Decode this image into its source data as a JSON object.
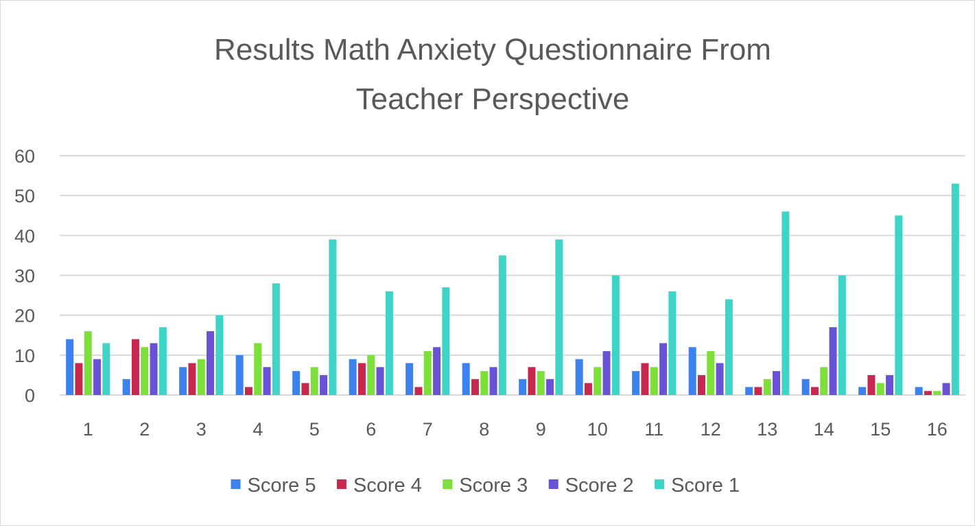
{
  "chart_data": {
    "type": "bar",
    "title": [
      "Results Math Anxiety Questionnaire From",
      "Teacher Perspective"
    ],
    "xlabel": "",
    "ylabel": "",
    "categories": [
      "1",
      "2",
      "3",
      "4",
      "5",
      "6",
      "7",
      "8",
      "9",
      "10",
      "11",
      "12",
      "13",
      "14",
      "15",
      "16"
    ],
    "ylim": [
      0,
      60
    ],
    "yticks": [
      0,
      10,
      20,
      30,
      40,
      50,
      60
    ],
    "grid": true,
    "legend_position": "bottom",
    "series": [
      {
        "name": "Score 5",
        "color": "#3c82ee",
        "values": [
          14,
          4,
          7,
          10,
          6,
          9,
          8,
          8,
          4,
          9,
          6,
          12,
          2,
          4,
          2,
          2
        ]
      },
      {
        "name": "Score 4",
        "color": "#c7284f",
        "values": [
          8,
          14,
          8,
          2,
          3,
          8,
          2,
          4,
          7,
          3,
          8,
          5,
          2,
          2,
          5,
          1
        ]
      },
      {
        "name": "Score 3",
        "color": "#7ddf39",
        "values": [
          16,
          12,
          9,
          13,
          7,
          10,
          11,
          6,
          6,
          7,
          7,
          11,
          4,
          7,
          3,
          1
        ]
      },
      {
        "name": "Score 2",
        "color": "#6a52d6",
        "values": [
          9,
          13,
          16,
          7,
          5,
          7,
          12,
          7,
          4,
          11,
          13,
          8,
          6,
          17,
          5,
          3
        ]
      },
      {
        "name": "Score 1",
        "color": "#3fd4c8",
        "values": [
          13,
          17,
          20,
          28,
          39,
          26,
          27,
          35,
          39,
          30,
          26,
          24,
          46,
          30,
          45,
          53
        ]
      }
    ]
  }
}
